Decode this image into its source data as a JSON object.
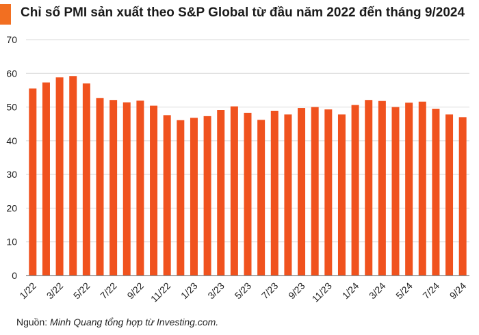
{
  "title": "Chỉ số PMI sản xuất theo S&P Global từ đầu năm 2022 đến tháng 9/2024",
  "colors": {
    "accent": "#f26f21",
    "bar": "#f0521e",
    "grid": "#d9d9d9",
    "axis": "#555555"
  },
  "source": {
    "prefix": "Nguồn: ",
    "text": "Minh Quang tổng hợp từ Investing.com."
  },
  "chart_data": {
    "type": "bar",
    "ylim": [
      0,
      70
    ],
    "yticks": [
      0,
      10,
      20,
      30,
      40,
      50,
      60,
      70
    ],
    "grid": true,
    "categories": [
      "1/22",
      "2/22",
      "3/22",
      "4/22",
      "5/22",
      "6/22",
      "7/22",
      "8/22",
      "9/22",
      "10/22",
      "11/22",
      "12/22",
      "1/23",
      "2/23",
      "3/23",
      "4/23",
      "5/23",
      "6/23",
      "7/23",
      "8/23",
      "9/23",
      "10/23",
      "11/23",
      "12/23",
      "1/24",
      "2/24",
      "3/24",
      "4/24",
      "5/24",
      "6/24",
      "7/24",
      "8/24",
      "9/24"
    ],
    "xtick_labels": [
      "1/22",
      "",
      "3/22",
      "",
      "5/22",
      "",
      "7/22",
      "",
      "9/22",
      "",
      "11/22",
      "",
      "1/23",
      "",
      "3/23",
      "",
      "5/23",
      "",
      "7/23",
      "",
      "9/23",
      "",
      "11/23",
      "",
      "1/24",
      "",
      "3/24",
      "",
      "5/24",
      "",
      "7/24",
      "",
      "9/24"
    ],
    "values": [
      55.5,
      57.3,
      58.8,
      59.2,
      57.0,
      52.7,
      52.1,
      51.4,
      51.9,
      50.4,
      47.6,
      46.1,
      46.8,
      47.3,
      49.1,
      50.2,
      48.3,
      46.2,
      48.9,
      47.8,
      49.7,
      50.0,
      49.3,
      47.8,
      50.6,
      52.1,
      51.8,
      50.0,
      51.3,
      51.6,
      49.5,
      47.8,
      47.0
    ]
  }
}
